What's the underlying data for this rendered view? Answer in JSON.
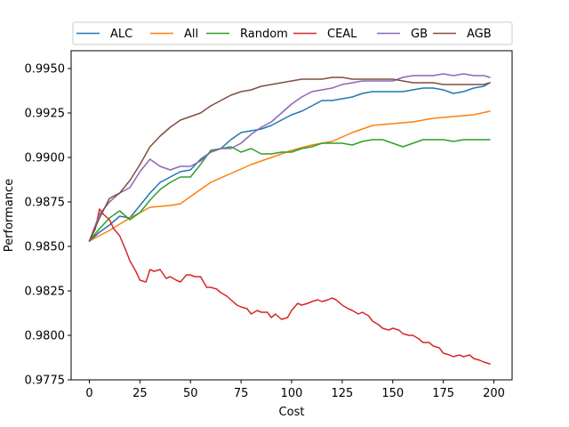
{
  "chart_data": {
    "type": "line",
    "xlabel": "Cost",
    "ylabel": "Performance",
    "xlim": [
      -9,
      209
    ],
    "ylim": [
      0.9775,
      0.996
    ],
    "xticks": [
      0,
      25,
      50,
      75,
      100,
      125,
      150,
      175,
      200
    ],
    "yticks": [
      0.9775,
      0.98,
      0.9825,
      0.985,
      0.9875,
      0.99,
      0.9925,
      0.995
    ],
    "ytick_labels": [
      "0.9775",
      "0.9800",
      "0.9825",
      "0.9850",
      "0.9875",
      "0.9900",
      "0.9925",
      "0.9950"
    ],
    "grid": false,
    "legend_position": "top",
    "series": [
      {
        "name": "ALC",
        "color": "#1f77b4",
        "x": [
          0,
          5,
          10,
          15,
          20,
          25,
          30,
          35,
          40,
          45,
          50,
          55,
          60,
          65,
          70,
          75,
          80,
          85,
          90,
          95,
          100,
          105,
          110,
          115,
          120,
          125,
          130,
          135,
          140,
          145,
          150,
          155,
          160,
          165,
          170,
          175,
          180,
          185,
          190,
          195,
          198
        ],
        "y": [
          0.9853,
          0.9858,
          0.9862,
          0.9867,
          0.9866,
          0.9873,
          0.988,
          0.9886,
          0.9889,
          0.9892,
          0.9893,
          0.9899,
          0.9903,
          0.9905,
          0.991,
          0.9914,
          0.9915,
          0.9916,
          0.9918,
          0.9921,
          0.9924,
          0.9926,
          0.9929,
          0.9932,
          0.9932,
          0.9933,
          0.9934,
          0.9936,
          0.9937,
          0.9937,
          0.9937,
          0.9937,
          0.9938,
          0.9939,
          0.9939,
          0.9938,
          0.9936,
          0.9937,
          0.9939,
          0.994,
          0.9942
        ]
      },
      {
        "name": "All",
        "color": "#ff7f0e",
        "x": [
          0,
          10,
          20,
          30,
          40,
          45,
          50,
          60,
          70,
          80,
          90,
          100,
          110,
          120,
          130,
          140,
          150,
          160,
          170,
          180,
          190,
          198
        ],
        "y": [
          0.9853,
          0.9859,
          0.9866,
          0.9872,
          0.9873,
          0.9874,
          0.9878,
          0.9886,
          0.9891,
          0.9896,
          0.99,
          0.9904,
          0.9907,
          0.9909,
          0.9914,
          0.9918,
          0.9919,
          0.992,
          0.9922,
          0.9923,
          0.9924,
          0.9926
        ]
      },
      {
        "name": "Random",
        "color": "#2ca02c",
        "x": [
          0,
          5,
          10,
          15,
          20,
          25,
          30,
          35,
          40,
          45,
          50,
          55,
          60,
          65,
          70,
          75,
          80,
          85,
          90,
          95,
          100,
          105,
          110,
          115,
          120,
          125,
          130,
          135,
          140,
          145,
          150,
          155,
          160,
          165,
          170,
          175,
          180,
          185,
          190,
          195,
          198
        ],
        "y": [
          0.9853,
          0.986,
          0.9866,
          0.987,
          0.9865,
          0.9869,
          0.9876,
          0.9882,
          0.9886,
          0.9889,
          0.9889,
          0.9896,
          0.9904,
          0.9905,
          0.9906,
          0.9903,
          0.9905,
          0.9902,
          0.9902,
          0.9903,
          0.9903,
          0.9905,
          0.9906,
          0.9908,
          0.9908,
          0.9908,
          0.9907,
          0.9909,
          0.991,
          0.991,
          0.9908,
          0.9906,
          0.9908,
          0.991,
          0.991,
          0.991,
          0.9909,
          0.991,
          0.991,
          0.991,
          0.991
        ]
      },
      {
        "name": "CEAL",
        "color": "#d62728",
        "x": [
          0,
          3,
          5,
          7,
          10,
          12,
          15,
          18,
          20,
          23,
          25,
          28,
          30,
          32,
          35,
          38,
          40,
          43,
          45,
          48,
          50,
          52,
          55,
          58,
          60,
          63,
          65,
          68,
          70,
          73,
          75,
          78,
          80,
          83,
          85,
          88,
          90,
          92,
          95,
          98,
          100,
          103,
          105,
          108,
          110,
          113,
          115,
          118,
          120,
          122,
          125,
          128,
          130,
          133,
          135,
          138,
          140,
          143,
          145,
          148,
          150,
          153,
          155,
          158,
          160,
          163,
          165,
          168,
          170,
          173,
          175,
          178,
          180,
          183,
          185,
          188,
          190,
          193,
          195,
          198
        ],
        "y": [
          0.9853,
          0.986,
          0.9871,
          0.9868,
          0.9865,
          0.986,
          0.9856,
          0.9848,
          0.9842,
          0.9836,
          0.9831,
          0.983,
          0.9837,
          0.9836,
          0.9837,
          0.9832,
          0.9833,
          0.9831,
          0.983,
          0.9834,
          0.9834,
          0.9833,
          0.9833,
          0.9827,
          0.9827,
          0.9826,
          0.9824,
          0.9822,
          0.982,
          0.9817,
          0.9816,
          0.9815,
          0.9812,
          0.9814,
          0.9813,
          0.9813,
          0.981,
          0.9812,
          0.9809,
          0.981,
          0.9814,
          0.9818,
          0.9817,
          0.9818,
          0.9819,
          0.982,
          0.9819,
          0.982,
          0.9821,
          0.982,
          0.9817,
          0.9815,
          0.9814,
          0.9812,
          0.9813,
          0.9811,
          0.9808,
          0.9806,
          0.9804,
          0.9803,
          0.9804,
          0.9803,
          0.9801,
          0.98,
          0.98,
          0.9798,
          0.9796,
          0.9796,
          0.9794,
          0.9793,
          0.979,
          0.9789,
          0.9788,
          0.9789,
          0.9788,
          0.9789,
          0.9787,
          0.9786,
          0.9785,
          0.9784
        ]
      },
      {
        "name": "GB",
        "color": "#8c67b5",
        "x": [
          0,
          5,
          10,
          15,
          20,
          25,
          30,
          35,
          40,
          45,
          50,
          55,
          60,
          65,
          70,
          75,
          80,
          85,
          90,
          95,
          100,
          105,
          110,
          115,
          120,
          125,
          130,
          135,
          140,
          145,
          150,
          155,
          160,
          165,
          170,
          175,
          180,
          185,
          190,
          195,
          198
        ],
        "y": [
          0.9853,
          0.9868,
          0.9875,
          0.988,
          0.9883,
          0.9892,
          0.9899,
          0.9895,
          0.9893,
          0.9895,
          0.9895,
          0.9898,
          0.9903,
          0.9905,
          0.9905,
          0.9908,
          0.9913,
          0.9917,
          0.992,
          0.9925,
          0.993,
          0.9934,
          0.9937,
          0.9938,
          0.9939,
          0.9941,
          0.9942,
          0.9943,
          0.9943,
          0.9943,
          0.9943,
          0.9945,
          0.9946,
          0.9946,
          0.9946,
          0.9947,
          0.9946,
          0.9947,
          0.9946,
          0.9946,
          0.9945
        ]
      },
      {
        "name": "AGB",
        "color": "#7f4f3f",
        "x": [
          0,
          5,
          10,
          15,
          20,
          25,
          30,
          35,
          40,
          45,
          50,
          55,
          60,
          65,
          70,
          75,
          80,
          85,
          90,
          95,
          100,
          105,
          110,
          115,
          120,
          125,
          130,
          135,
          140,
          145,
          150,
          155,
          160,
          165,
          170,
          175,
          180,
          185,
          190,
          195,
          198
        ],
        "y": [
          0.9853,
          0.9866,
          0.9877,
          0.988,
          0.9887,
          0.9896,
          0.9906,
          0.9912,
          0.9917,
          0.9921,
          0.9923,
          0.9925,
          0.9929,
          0.9932,
          0.9935,
          0.9937,
          0.9938,
          0.994,
          0.9941,
          0.9942,
          0.9943,
          0.9944,
          0.9944,
          0.9944,
          0.9945,
          0.9945,
          0.9944,
          0.9944,
          0.9944,
          0.9944,
          0.9944,
          0.9943,
          0.9942,
          0.9942,
          0.9942,
          0.9941,
          0.9941,
          0.9941,
          0.9941,
          0.9941,
          0.9942
        ]
      }
    ]
  }
}
